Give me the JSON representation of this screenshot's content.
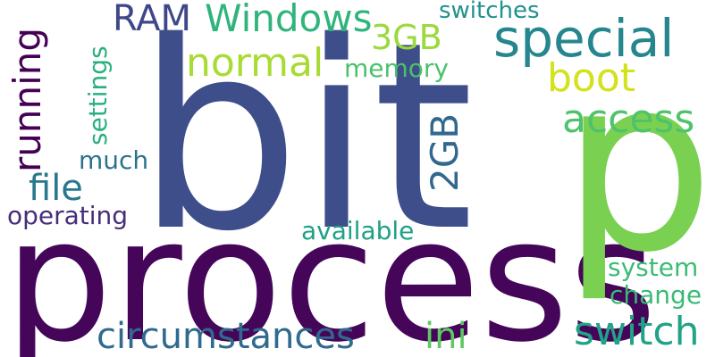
{
  "words": [
    {
      "id": "bit",
      "text": "bit",
      "color": "#3e4e8a"
    },
    {
      "id": "process",
      "text": "process",
      "color": "#45065a"
    },
    {
      "id": "p",
      "text": "p",
      "color": "#7ad151"
    },
    {
      "id": "special",
      "text": "special",
      "color": "#25868e"
    },
    {
      "id": "windows",
      "text": "Windows",
      "color": "#2fb47c"
    },
    {
      "id": "ram",
      "text": "RAM",
      "color": "#3f4788"
    },
    {
      "id": "3gb",
      "text": "3GB",
      "color": "#9bd93c"
    },
    {
      "id": "switches",
      "text": "switches",
      "color": "#21918c"
    },
    {
      "id": "normal",
      "text": "normal",
      "color": "#a8db34"
    },
    {
      "id": "memory",
      "text": "memory",
      "color": "#4ac16d"
    },
    {
      "id": "boot",
      "text": "boot",
      "color": "#d2e21b"
    },
    {
      "id": "access",
      "text": "access",
      "color": "#4ec36b"
    },
    {
      "id": "running",
      "text": "running",
      "color": "#440154"
    },
    {
      "id": "settings",
      "text": "settings",
      "color": "#2ab07f"
    },
    {
      "id": "much",
      "text": "much",
      "color": "#2c728e"
    },
    {
      "id": "file",
      "text": "file",
      "color": "#2a788e"
    },
    {
      "id": "operating",
      "text": "operating",
      "color": "#472d7b"
    },
    {
      "id": "2gb",
      "text": "2GB",
      "color": "#31688e"
    },
    {
      "id": "available",
      "text": "available",
      "color": "#1fa187"
    },
    {
      "id": "system",
      "text": "system",
      "color": "#3bbb75"
    },
    {
      "id": "change",
      "text": "change",
      "color": "#3aba76"
    },
    {
      "id": "circumstances",
      "text": "circumstances",
      "color": "#306a8e"
    },
    {
      "id": "ini",
      "text": "ini",
      "color": "#5ec962"
    },
    {
      "id": "switch",
      "text": "switch",
      "color": "#20a386"
    }
  ]
}
